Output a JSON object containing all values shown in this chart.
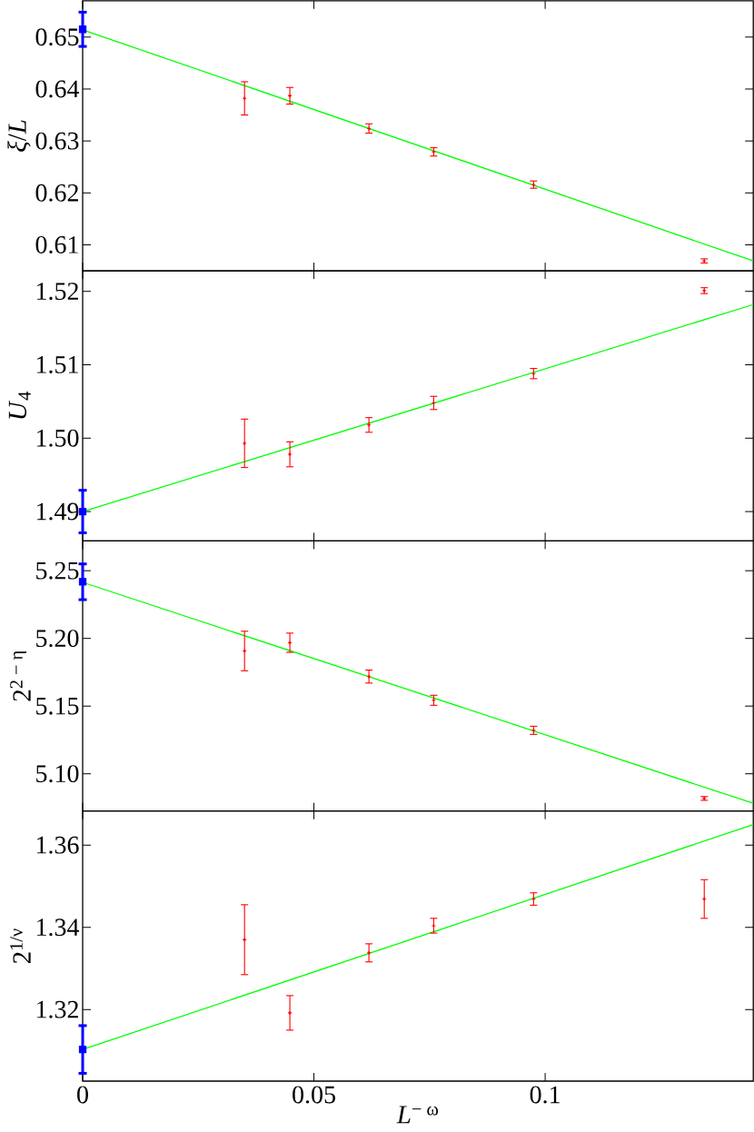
{
  "chart_data": [
    {
      "type": "scatter",
      "ylabel": "*ξ*/*L*",
      "xlim": [
        0,
        0.145
      ],
      "xticks": [
        0,
        0.05,
        0.1
      ],
      "ylim": [
        0.605,
        0.657
      ],
      "yticks": [
        0.61,
        0.62,
        0.63,
        0.64,
        0.65
      ],
      "tick_labels": "y",
      "series": [
        {
          "type": "line",
          "color": "#00ff00",
          "marker": "none",
          "x": [
            0,
            0.145
          ],
          "values": [
            0.6514,
            0.6069
          ]
        },
        {
          "color": "#ff0000",
          "marker": "cross",
          "x": [
            0.035,
            0.0448,
            0.0619,
            0.0759,
            0.0975,
            0.1344
          ],
          "values": [
            0.6382,
            0.6387,
            0.6324,
            0.6279,
            0.6216,
            0.6069
          ],
          "errors": [
            0.0032,
            0.0016,
            0.0009,
            0.0008,
            0.0007,
            0.0004
          ]
        },
        {
          "color": "#0000ff",
          "marker": "square",
          "x": [
            0
          ],
          "values": [
            0.6515
          ],
          "errors": [
            0.0033
          ]
        }
      ]
    },
    {
      "type": "scatter",
      "ylabel": "*U*$_{4}$",
      "xlim": [
        0,
        0.145
      ],
      "xticks": [
        0,
        0.05,
        0.1
      ],
      "ylim": [
        1.486,
        1.5228
      ],
      "yticks": [
        1.49,
        {
          "value": 1.5,
          "label": "1.50"
        },
        1.51,
        1.52
      ],
      "tick_labels": "y",
      "series": [
        {
          "type": "line",
          "color": "#00ff00",
          "marker": "none",
          "x": [
            0,
            0.145
          ],
          "values": [
            1.49,
            1.5182
          ]
        },
        {
          "color": "#ff0000",
          "marker": "cross",
          "x": [
            0.035,
            0.0448,
            0.0619,
            0.0759,
            0.0975,
            0.1344
          ],
          "values": [
            1.4993,
            1.4978,
            1.5018,
            1.5048,
            1.5088,
            1.5201
          ],
          "errors": [
            0.0033,
            0.0017,
            0.001,
            0.0009,
            0.0007,
            0.0004
          ]
        },
        {
          "color": "#0000ff",
          "marker": "square",
          "x": [
            0
          ],
          "values": [
            1.49
          ],
          "errors": [
            0.0029
          ]
        }
      ]
    },
    {
      "type": "scatter",
      "ylabel": "2$^{2 − η}$",
      "xlim": [
        0,
        0.145
      ],
      "xticks": [
        0,
        0.05,
        0.1
      ],
      "ylim": [
        5.0725,
        5.272
      ],
      "yticks": [
        {
          "value": 5.1,
          "label": "5.10"
        },
        5.15,
        {
          "value": 5.2,
          "label": "5.20"
        },
        5.25
      ],
      "tick_labels": "y",
      "series": [
        {
          "type": "line",
          "color": "#00ff00",
          "marker": "none",
          "x": [
            0,
            0.145
          ],
          "values": [
            5.2414,
            5.0782
          ]
        },
        {
          "color": "#ff0000",
          "marker": "cross",
          "x": [
            0.035,
            0.0448,
            0.0619,
            0.0759,
            0.0975,
            0.1344
          ],
          "values": [
            5.1907,
            5.1968,
            5.1718,
            5.1543,
            5.1321,
            5.0818
          ],
          "errors": [
            0.0146,
            0.0071,
            0.0048,
            0.0037,
            0.003,
            0.0014
          ]
        },
        {
          "color": "#0000ff",
          "marker": "square",
          "x": [
            0
          ],
          "values": [
            5.2418
          ],
          "errors": [
            0.0132
          ]
        }
      ]
    },
    {
      "type": "scatter",
      "xlabel": "*L*$^{− ω}$",
      "ylabel": "2$^{1/ν}$",
      "xlim": [
        0,
        0.145
      ],
      "xticks": [
        0,
        0.05,
        0.1
      ],
      "ylim": [
        1.3026,
        1.3683
      ],
      "yticks": [
        1.32,
        1.34,
        1.36
      ],
      "series": [
        {
          "type": "line",
          "color": "#00ff00",
          "marker": "none",
          "x": [
            0,
            0.145
          ],
          "values": [
            1.3103,
            1.365
          ]
        },
        {
          "color": "#ff0000",
          "marker": "cross",
          "x": [
            0.035,
            0.0448,
            0.0619,
            0.0759,
            0.0975,
            0.1344
          ],
          "values": [
            1.337,
            1.3192,
            1.3338,
            1.3404,
            1.3469,
            1.3469
          ],
          "errors": [
            0.0085,
            0.0042,
            0.0022,
            0.0018,
            0.0015,
            0.0047
          ]
        },
        {
          "color": "#0000ff",
          "marker": "square",
          "x": [
            0
          ],
          "values": [
            1.3103
          ],
          "errors": [
            0.0058
          ]
        }
      ]
    }
  ]
}
